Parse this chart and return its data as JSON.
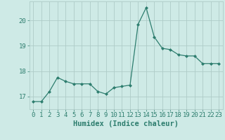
{
  "x": [
    0,
    1,
    2,
    3,
    4,
    5,
    6,
    7,
    8,
    9,
    10,
    11,
    12,
    13,
    14,
    15,
    16,
    17,
    18,
    19,
    20,
    21,
    22,
    23
  ],
  "y": [
    16.8,
    16.8,
    17.2,
    17.75,
    17.6,
    17.5,
    17.5,
    17.5,
    17.2,
    17.1,
    17.35,
    17.4,
    17.45,
    19.85,
    20.5,
    19.35,
    18.9,
    18.85,
    18.65,
    18.6,
    18.6,
    18.3,
    18.3,
    18.3
  ],
  "line_color": "#2d7d6e",
  "marker": "D",
  "marker_size": 2.0,
  "bg_color": "#ceeae6",
  "grid_color": "#aeccc8",
  "axis_color": "#2d7d6e",
  "xlabel": "Humidex (Indice chaleur)",
  "ylim": [
    16.5,
    20.75
  ],
  "yticks": [
    17,
    18,
    19,
    20
  ],
  "xticks": [
    0,
    1,
    2,
    3,
    4,
    5,
    6,
    7,
    8,
    9,
    10,
    11,
    12,
    13,
    14,
    15,
    16,
    17,
    18,
    19,
    20,
    21,
    22,
    23
  ],
  "xlabel_fontsize": 7.5,
  "tick_fontsize": 6.5
}
